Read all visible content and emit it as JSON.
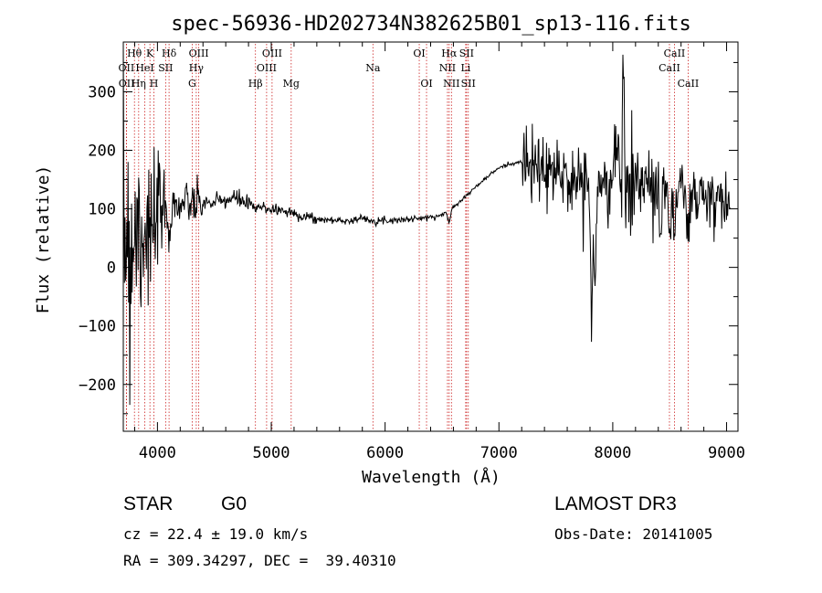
{
  "chart_data": {
    "type": "line",
    "title": "spec-56936-HD202734N382625B01_sp13-116.fits",
    "xlabel": "Wavelength (Å)",
    "ylabel": "Flux (relative)",
    "xlim": [
      3700,
      9100
    ],
    "ylim": [
      -280,
      385
    ],
    "xticks": [
      4000,
      5000,
      6000,
      7000,
      8000,
      9000
    ],
    "yticks": [
      -200,
      -100,
      0,
      100,
      200,
      300
    ],
    "line_color": "#000000",
    "marker_color": "#cc2222",
    "spectral_lines": [
      {
        "label": "Hθ",
        "x": 3798,
        "row": 1
      },
      {
        "label": "OII",
        "x": 3727,
        "row": 2
      },
      {
        "label": "OII",
        "x": 3729,
        "row": 3
      },
      {
        "label": "Hη",
        "x": 3835,
        "row": 3
      },
      {
        "label": "K",
        "x": 3934,
        "row": 1
      },
      {
        "label": "HeI",
        "x": 3889,
        "row": 2
      },
      {
        "label": "H",
        "x": 3969,
        "row": 3
      },
      {
        "label": "SII",
        "x": 4072,
        "row": 2
      },
      {
        "label": "Hδ",
        "x": 4102,
        "row": 1
      },
      {
        "label": "OIII",
        "x": 4363,
        "row": 1
      },
      {
        "label": "Hγ",
        "x": 4341,
        "row": 2
      },
      {
        "label": "G",
        "x": 4305,
        "row": 3
      },
      {
        "label": "OIII",
        "x": 5007,
        "row": 1
      },
      {
        "label": "OIII",
        "x": 4959,
        "row": 2
      },
      {
        "label": "Hβ",
        "x": 4861,
        "row": 3
      },
      {
        "label": "Mg",
        "x": 5175,
        "row": 3
      },
      {
        "label": "Na",
        "x": 5893,
        "row": 2
      },
      {
        "label": "OI",
        "x": 6300,
        "row": 1
      },
      {
        "label": "OI",
        "x": 6364,
        "row": 3
      },
      {
        "label": "Hα",
        "x": 6563,
        "row": 1
      },
      {
        "label": "NII",
        "x": 6548,
        "row": 2
      },
      {
        "label": "NII",
        "x": 6583,
        "row": 3
      },
      {
        "label": "SII",
        "x": 6716,
        "row": 1
      },
      {
        "label": "Li",
        "x": 6708,
        "row": 2
      },
      {
        "label": "SII",
        "x": 6731,
        "row": 3
      },
      {
        "label": "CaII",
        "x": 8542,
        "row": 1
      },
      {
        "label": "CaII",
        "x": 8498,
        "row": 2
      },
      {
        "label": "CaII",
        "x": 8662,
        "row": 3
      }
    ],
    "spectrum_anchors": [
      [
        3700,
        90
      ],
      [
        3800,
        100
      ],
      [
        3900,
        95
      ],
      [
        4000,
        92
      ],
      [
        4100,
        100
      ],
      [
        4200,
        108
      ],
      [
        4300,
        108
      ],
      [
        4400,
        110
      ],
      [
        4500,
        110
      ],
      [
        4600,
        115
      ],
      [
        4700,
        118
      ],
      [
        4800,
        108
      ],
      [
        4900,
        103
      ],
      [
        5000,
        100
      ],
      [
        5100,
        97
      ],
      [
        5200,
        92
      ],
      [
        5300,
        87
      ],
      [
        5400,
        82
      ],
      [
        5500,
        81
      ],
      [
        5600,
        80
      ],
      [
        5700,
        80
      ],
      [
        5800,
        84
      ],
      [
        5900,
        80
      ],
      [
        6000,
        80
      ],
      [
        6100,
        81
      ],
      [
        6200,
        82
      ],
      [
        6300,
        84
      ],
      [
        6400,
        85
      ],
      [
        6500,
        90
      ],
      [
        6560,
        96
      ],
      [
        6600,
        104
      ],
      [
        6700,
        120
      ],
      [
        6800,
        138
      ],
      [
        6900,
        155
      ],
      [
        7000,
        170
      ],
      [
        7100,
        177
      ],
      [
        7200,
        180
      ],
      [
        7300,
        170
      ],
      [
        7400,
        165
      ],
      [
        7500,
        158
      ],
      [
        7600,
        152
      ],
      [
        7700,
        150
      ],
      [
        7800,
        148
      ],
      [
        7900,
        145
      ],
      [
        8000,
        155
      ],
      [
        8100,
        160
      ],
      [
        8200,
        152
      ],
      [
        8300,
        140
      ],
      [
        8400,
        135
      ],
      [
        8500,
        130
      ],
      [
        8600,
        125
      ],
      [
        8700,
        120
      ],
      [
        8800,
        118
      ],
      [
        8900,
        110
      ],
      [
        9000,
        102
      ],
      [
        9030,
        98
      ]
    ],
    "features": [
      [
        3765,
        -40,
        40
      ],
      [
        3830,
        -20,
        35
      ],
      [
        3880,
        -15,
        35
      ],
      [
        3934,
        -40,
        28
      ],
      [
        3969,
        -30,
        28
      ],
      [
        4102,
        -20,
        18
      ],
      [
        4341,
        -8,
        14
      ],
      [
        4861,
        -8,
        18
      ],
      [
        6563,
        -20,
        16
      ],
      [
        7815,
        -250,
        14
      ],
      [
        7845,
        -190,
        12
      ],
      [
        8090,
        150,
        10
      ],
      [
        8050,
        90,
        12
      ],
      [
        8498,
        -70,
        10
      ],
      [
        8542,
        -90,
        10
      ],
      [
        8662,
        -70,
        12
      ],
      [
        8420,
        -90,
        10
      ],
      [
        7960,
        -70,
        10
      ]
    ],
    "noise_segments": [
      [
        3700,
        3780,
        260
      ],
      [
        3780,
        3880,
        180
      ],
      [
        3880,
        4000,
        120
      ],
      [
        4000,
        4150,
        70
      ],
      [
        4150,
        4400,
        30
      ],
      [
        4400,
        4800,
        14
      ],
      [
        4800,
        5400,
        10
      ],
      [
        5400,
        6400,
        5
      ],
      [
        6400,
        7200,
        3
      ],
      [
        7200,
        7300,
        60
      ],
      [
        7300,
        8000,
        55
      ],
      [
        8000,
        8200,
        90
      ],
      [
        8200,
        8600,
        55
      ],
      [
        8600,
        9030,
        50
      ]
    ]
  },
  "info": {
    "object_class": "STAR",
    "subclass": "G0",
    "survey": "LAMOST DR3",
    "cz": "cz = 22.4 ± 19.0 km/s",
    "obs_date": "Obs-Date: 20141005",
    "coords": "RA = 309.34297, DEC =  39.40310"
  }
}
